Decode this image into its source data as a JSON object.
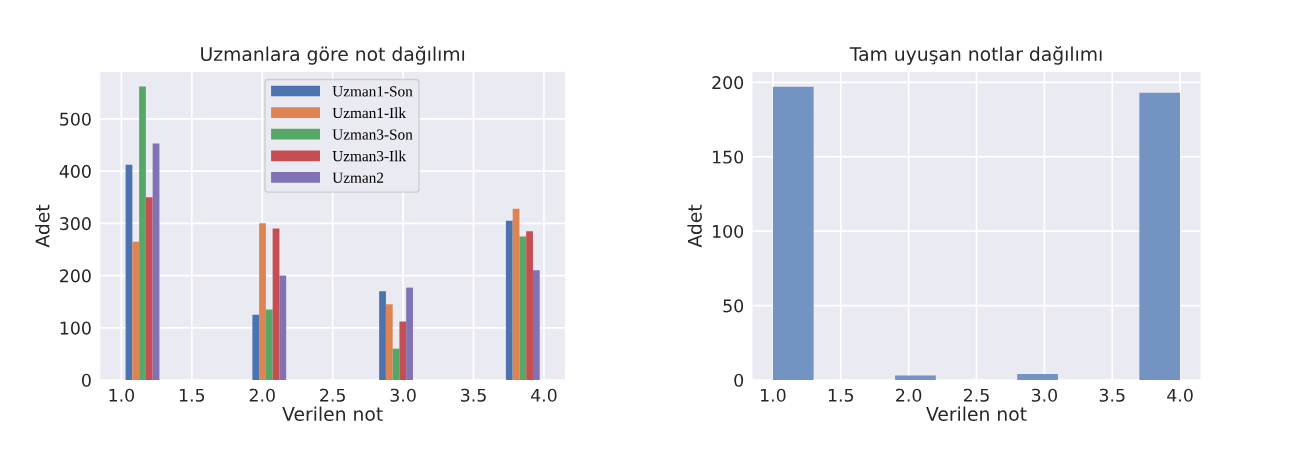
{
  "chart_data": [
    {
      "type": "histogram",
      "title": "Uzmanlara göre not dağılımı",
      "xlabel": "Verilen not",
      "ylabel": "Adet",
      "bins": [
        1.0,
        1.3,
        1.6,
        1.9,
        2.2,
        2.5,
        2.8,
        3.1,
        3.4,
        3.7,
        4.0
      ],
      "series": [
        {
          "name": "Uzman1-Son",
          "color": "#4c72b0",
          "values": [
            412,
            0,
            0,
            125,
            0,
            0,
            170,
            0,
            0,
            305
          ]
        },
        {
          "name": "Uzman1-Ilk",
          "color": "#dd8452",
          "values": [
            265,
            0,
            0,
            300,
            0,
            0,
            145,
            0,
            0,
            328
          ]
        },
        {
          "name": "Uzman3-Son",
          "color": "#55a868",
          "values": [
            562,
            0,
            0,
            135,
            0,
            0,
            60,
            0,
            0,
            275
          ]
        },
        {
          "name": "Uzman3-Ilk",
          "color": "#c44e52",
          "values": [
            350,
            0,
            0,
            290,
            0,
            0,
            112,
            0,
            0,
            285
          ]
        },
        {
          "name": "Uzman2",
          "color": "#8172b3",
          "values": [
            453,
            0,
            0,
            200,
            0,
            0,
            177,
            0,
            0,
            210
          ]
        }
      ],
      "xlim": [
        0.85,
        4.15
      ],
      "ylim": [
        0,
        590
      ],
      "xticks": [
        {
          "value": 1,
          "label": "1.0"
        },
        {
          "value": 1.5,
          "label": "1.5"
        },
        {
          "value": 2,
          "label": "2.0"
        },
        {
          "value": 2.5,
          "label": "2.5"
        },
        {
          "value": 3,
          "label": "3.0"
        },
        {
          "value": 3.5,
          "label": "3.5"
        },
        {
          "value": 4,
          "label": "4.0"
        }
      ],
      "yticks": [
        0,
        100,
        200,
        300,
        400,
        500
      ],
      "grid": true,
      "legend": "top center"
    },
    {
      "type": "histogram",
      "title": "Tam uyuşan notlar dağılımı",
      "xlabel": "Verilen not",
      "ylabel": "Adet",
      "bins": [
        1.0,
        1.3,
        1.6,
        1.9,
        2.2,
        2.5,
        2.8,
        3.1,
        3.4,
        3.7,
        4.0
      ],
      "series": [
        {
          "color": "#7393c3",
          "values": [
            197,
            0,
            0,
            3,
            0,
            0,
            4,
            0,
            0,
            193
          ]
        }
      ],
      "xlim": [
        0.85,
        4.15
      ],
      "ylim": [
        0,
        207
      ],
      "xticks": [
        {
          "value": 1,
          "label": "1.0"
        },
        {
          "value": 1.5,
          "label": "1.5"
        },
        {
          "value": 2,
          "label": "2.0"
        },
        {
          "value": 2.5,
          "label": "2.5"
        },
        {
          "value": 3,
          "label": "3.0"
        },
        {
          "value": 3.5,
          "label": "3.5"
        },
        {
          "value": 4,
          "label": "4.0"
        }
      ],
      "yticks": [
        0,
        50,
        100,
        150,
        200
      ],
      "grid": true
    }
  ]
}
